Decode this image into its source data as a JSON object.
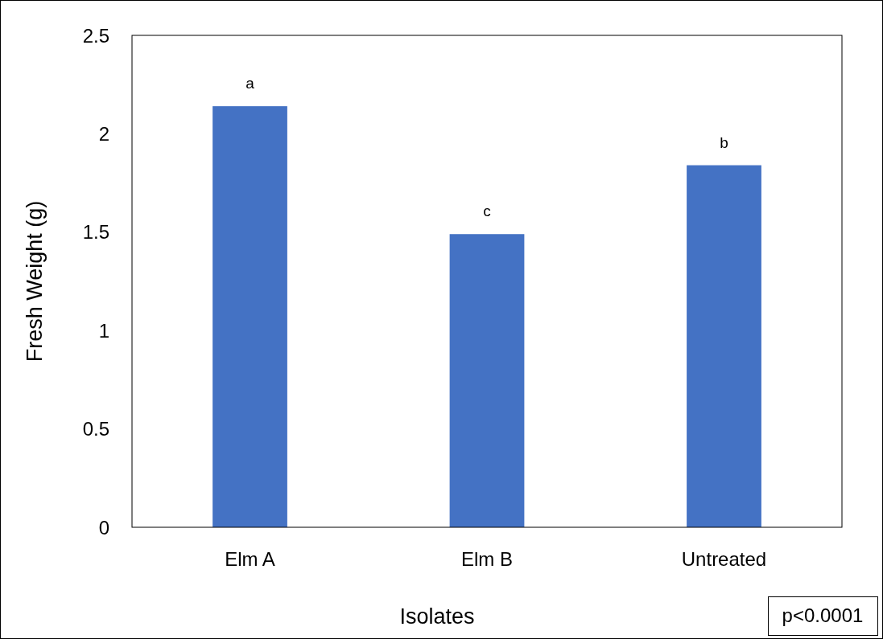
{
  "chart_data": {
    "type": "bar",
    "xlabel": "Isolates",
    "ylabel": "Fresh Weight (g)",
    "categories": [
      "Elm A",
      "Elm B",
      "Untreated"
    ],
    "values": [
      2.14,
      1.49,
      1.84
    ],
    "color": "#4472c4",
    "ylim": [
      0,
      2.5
    ],
    "yticks": [
      0,
      0.5,
      1,
      1.5,
      2,
      2.5
    ],
    "grid": false,
    "annotations": [
      {
        "text": "a",
        "x": "Elm A",
        "y": 2.14
      },
      {
        "text": "c",
        "x": "Elm B",
        "y": 1.49
      },
      {
        "text": "b",
        "x": "Untreated",
        "y": 1.84
      },
      "p<0.0001"
    ]
  }
}
